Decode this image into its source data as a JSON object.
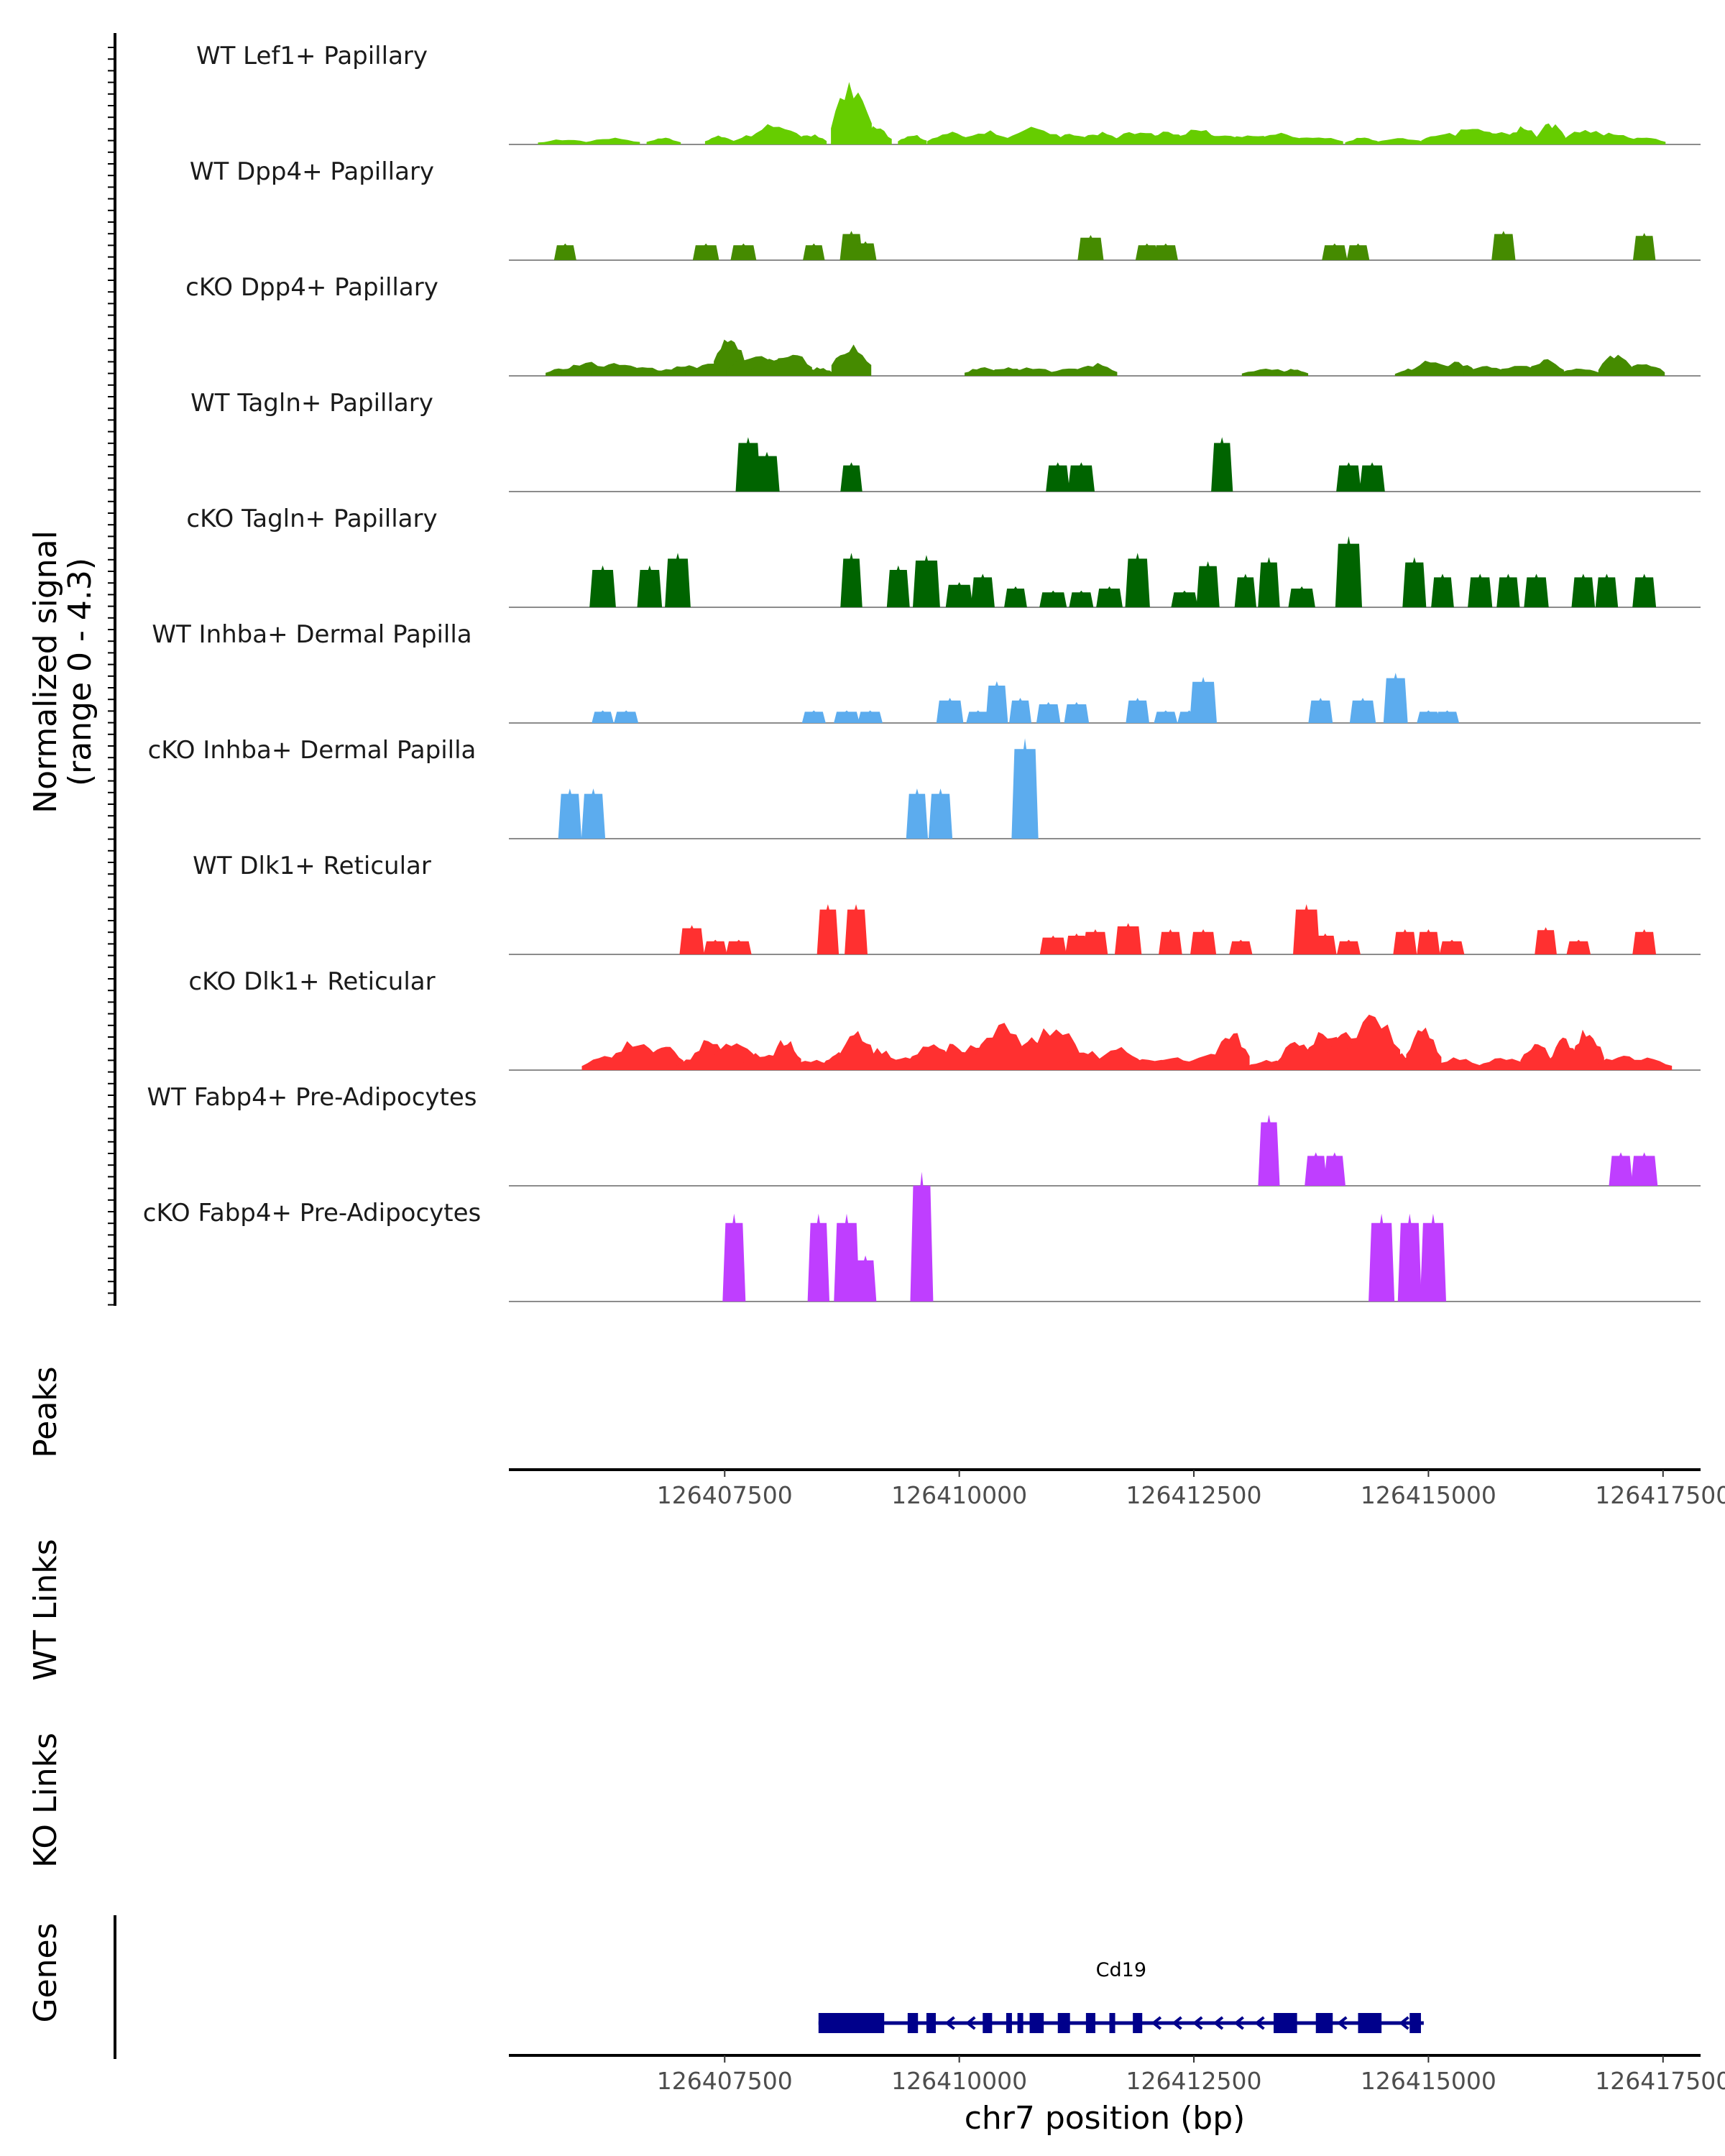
{
  "chart_data": {
    "type": "area",
    "chromosome": "chr7",
    "xlim": [
      126405200,
      126417900
    ],
    "x_ticks": [
      126407500,
      126410000,
      126412500,
      126415000,
      126417500
    ],
    "x_tick_labels": [
      "126407500",
      "126410000",
      "126412500",
      "126415000",
      "126417500"
    ],
    "xlabel": "chr7 position (bp)",
    "ylabel": "Normalized signal",
    "ylabel_range": "(range 0 - 4.3)",
    "ylim": [
      0,
      4.3
    ],
    "series": [
      {
        "name": "WT Lef1+ Papillary",
        "color": "#66CD00",
        "mode": "dense",
        "peaks": [
          [
            126405800,
            0.15
          ],
          [
            126406300,
            0.2
          ],
          [
            126406850,
            0.2
          ],
          [
            126407450,
            0.25
          ],
          [
            126407800,
            0.3
          ],
          [
            126408050,
            0.6
          ],
          [
            126408400,
            0.3
          ],
          [
            126408850,
            1.7
          ],
          [
            126409100,
            0.5
          ],
          [
            126409500,
            0.3
          ],
          [
            126409900,
            0.35
          ],
          [
            126410300,
            0.4
          ],
          [
            126410800,
            0.5
          ],
          [
            126411200,
            0.3
          ],
          [
            126411500,
            0.35
          ],
          [
            126411900,
            0.4
          ],
          [
            126412200,
            0.35
          ],
          [
            126412550,
            0.45
          ],
          [
            126412800,
            0.3
          ],
          [
            126413100,
            0.3
          ],
          [
            126413400,
            0.35
          ],
          [
            126413800,
            0.25
          ],
          [
            126414300,
            0.2
          ],
          [
            126414700,
            0.2
          ],
          [
            126415150,
            0.35
          ],
          [
            126415500,
            0.55
          ],
          [
            126415750,
            0.4
          ],
          [
            126416000,
            0.5
          ],
          [
            126416300,
            0.6
          ],
          [
            126416700,
            0.45
          ],
          [
            126417000,
            0.35
          ],
          [
            126417300,
            0.25
          ]
        ]
      },
      {
        "name": "WT Dpp4+ Papillary",
        "color": "#458B00",
        "mode": "blocky",
        "peaks": [
          [
            126405800,
            0.4
          ],
          [
            126407300,
            0.4
          ],
          [
            126407700,
            0.4
          ],
          [
            126408450,
            0.4
          ],
          [
            126408850,
            0.7
          ],
          [
            126409000,
            0.45
          ],
          [
            126411400,
            0.6
          ],
          [
            126412000,
            0.4
          ],
          [
            126412200,
            0.4
          ],
          [
            126414000,
            0.4
          ],
          [
            126414250,
            0.4
          ],
          [
            126415800,
            0.7
          ],
          [
            126417300,
            0.65
          ]
        ]
      },
      {
        "name": "cKO Dpp4+ Papillary",
        "color": "#458B00",
        "mode": "dense",
        "peaks": [
          [
            126405800,
            0.25
          ],
          [
            126406050,
            0.4
          ],
          [
            126406350,
            0.4
          ],
          [
            126406650,
            0.25
          ],
          [
            126406900,
            0.2
          ],
          [
            126407100,
            0.35
          ],
          [
            126407350,
            0.35
          ],
          [
            126407550,
            1.3
          ],
          [
            126407800,
            0.6
          ],
          [
            126408000,
            0.5
          ],
          [
            126408200,
            0.7
          ],
          [
            126408500,
            0.25
          ],
          [
            126408850,
            0.85
          ],
          [
            126410250,
            0.25
          ],
          [
            126410500,
            0.25
          ],
          [
            126410750,
            0.25
          ],
          [
            126411200,
            0.2
          ],
          [
            126411450,
            0.35
          ],
          [
            126413300,
            0.2
          ],
          [
            126413550,
            0.2
          ],
          [
            126414800,
            0.2
          ],
          [
            126415050,
            0.45
          ],
          [
            126415300,
            0.4
          ],
          [
            126415600,
            0.3
          ],
          [
            126415950,
            0.3
          ],
          [
            126416250,
            0.5
          ],
          [
            126416600,
            0.25
          ],
          [
            126417000,
            0.6
          ],
          [
            126417300,
            0.35
          ]
        ]
      },
      {
        "name": "WT Tagln+ Papillary",
        "color": "#006400",
        "mode": "blocky",
        "peaks": [
          [
            126407750,
            1.3
          ],
          [
            126407950,
            0.95
          ],
          [
            126408850,
            0.7
          ],
          [
            126411050,
            0.7
          ],
          [
            126411300,
            0.7
          ],
          [
            126412800,
            1.3
          ],
          [
            126414150,
            0.7
          ],
          [
            126414400,
            0.7
          ]
        ]
      },
      {
        "name": "cKO Tagln+ Papillary",
        "color": "#006400",
        "mode": "blocky",
        "peaks": [
          [
            126406200,
            1.0
          ],
          [
            126406700,
            1.0
          ],
          [
            126407000,
            1.3
          ],
          [
            126408850,
            1.3
          ],
          [
            126409350,
            1.0
          ],
          [
            126409650,
            1.25
          ],
          [
            126410000,
            0.6
          ],
          [
            126410250,
            0.8
          ],
          [
            126410600,
            0.5
          ],
          [
            126411000,
            0.4
          ],
          [
            126411300,
            0.4
          ],
          [
            126411600,
            0.5
          ],
          [
            126411900,
            1.3
          ],
          [
            126412400,
            0.4
          ],
          [
            126412650,
            1.1
          ],
          [
            126413050,
            0.8
          ],
          [
            126413300,
            1.2
          ],
          [
            126413650,
            0.5
          ],
          [
            126414150,
            1.7
          ],
          [
            126414850,
            1.2
          ],
          [
            126415150,
            0.8
          ],
          [
            126415550,
            0.8
          ],
          [
            126415850,
            0.8
          ],
          [
            126416150,
            0.8
          ],
          [
            126416650,
            0.8
          ],
          [
            126416900,
            0.8
          ],
          [
            126417300,
            0.8
          ]
        ]
      },
      {
        "name": "WT Inhba+ Dermal Papilla",
        "color": "#5CACEE",
        "mode": "blocky",
        "peaks": [
          [
            126406200,
            0.3
          ],
          [
            126406450,
            0.3
          ],
          [
            126408450,
            0.3
          ],
          [
            126408800,
            0.3
          ],
          [
            126409050,
            0.3
          ],
          [
            126409900,
            0.6
          ],
          [
            126410200,
            0.3
          ],
          [
            126410400,
            1.0
          ],
          [
            126410650,
            0.6
          ],
          [
            126410950,
            0.5
          ],
          [
            126411250,
            0.5
          ],
          [
            126411900,
            0.6
          ],
          [
            126412200,
            0.3
          ],
          [
            126412450,
            0.3
          ],
          [
            126412600,
            1.1
          ],
          [
            126413850,
            0.6
          ],
          [
            126414300,
            0.6
          ],
          [
            126414650,
            1.2
          ],
          [
            126415000,
            0.3
          ],
          [
            126415200,
            0.3
          ]
        ]
      },
      {
        "name": "cKO Inhba+ Dermal Papilla",
        "color": "#5CACEE",
        "mode": "blocky",
        "peaks": [
          [
            126405850,
            1.2
          ],
          [
            126406100,
            1.2
          ],
          [
            126409550,
            1.2
          ],
          [
            126409800,
            1.2
          ],
          [
            126410700,
            2.4
          ]
        ]
      },
      {
        "name": "WT Dlk1+ Reticular",
        "color": "#FF3030",
        "mode": "blocky",
        "peaks": [
          [
            126407150,
            0.7
          ],
          [
            126407400,
            0.35
          ],
          [
            126407650,
            0.35
          ],
          [
            126408600,
            1.2
          ],
          [
            126408900,
            1.2
          ],
          [
            126411000,
            0.45
          ],
          [
            126411250,
            0.5
          ],
          [
            126411450,
            0.6
          ],
          [
            126411800,
            0.75
          ],
          [
            126412250,
            0.6
          ],
          [
            126412600,
            0.6
          ],
          [
            126413000,
            0.35
          ],
          [
            126413700,
            1.2
          ],
          [
            126413900,
            0.5
          ],
          [
            126414150,
            0.35
          ],
          [
            126414750,
            0.6
          ],
          [
            126415000,
            0.6
          ],
          [
            126415250,
            0.35
          ],
          [
            126416250,
            0.65
          ],
          [
            126416600,
            0.35
          ],
          [
            126417300,
            0.6
          ]
        ]
      },
      {
        "name": "cKO Dlk1+ Reticular",
        "color": "#FF3030",
        "mode": "dense",
        "peaks": [
          [
            126406250,
            0.4
          ],
          [
            126406550,
            0.9
          ],
          [
            126406850,
            0.8
          ],
          [
            126407150,
            0.35
          ],
          [
            126407350,
            0.9
          ],
          [
            126407600,
            0.8
          ],
          [
            126407900,
            0.5
          ],
          [
            126408150,
            0.9
          ],
          [
            126408450,
            0.3
          ],
          [
            126408700,
            0.5
          ],
          [
            126408900,
            1.2
          ],
          [
            126409150,
            0.6
          ],
          [
            126409400,
            0.4
          ],
          [
            126409700,
            0.7
          ],
          [
            126409950,
            0.8
          ],
          [
            126410150,
            0.7
          ],
          [
            126410450,
            1.3
          ],
          [
            126410750,
            0.9
          ],
          [
            126411000,
            1.3
          ],
          [
            126411350,
            0.6
          ],
          [
            126411700,
            0.7
          ],
          [
            126412050,
            0.35
          ],
          [
            126412300,
            0.35
          ],
          [
            126412650,
            0.45
          ],
          [
            126412900,
            1.1
          ],
          [
            126413300,
            0.3
          ],
          [
            126413600,
            0.8
          ],
          [
            126413900,
            1.2
          ],
          [
            126414150,
            1.1
          ],
          [
            126414400,
            1.6
          ],
          [
            126414700,
            0.5
          ],
          [
            126414950,
            1.2
          ],
          [
            126415300,
            0.35
          ],
          [
            126415800,
            0.35
          ],
          [
            126416150,
            0.8
          ],
          [
            126416450,
            0.9
          ],
          [
            126416700,
            1.2
          ],
          [
            126417050,
            0.4
          ],
          [
            126417300,
            0.35
          ]
        ]
      },
      {
        "name": "WT Fabp4+ Pre-Adipocytes",
        "color": "#BF3EFF",
        "mode": "blocky",
        "peaks": [
          [
            126413300,
            1.7
          ],
          [
            126413800,
            0.8
          ],
          [
            126414000,
            0.8
          ],
          [
            126417050,
            0.8
          ],
          [
            126417300,
            0.8
          ]
        ]
      },
      {
        "name": "cKO Fabp4+ Pre-Adipocytes",
        "color": "#BF3EFF",
        "mode": "blocky",
        "peaks": [
          [
            126407600,
            2.1
          ],
          [
            126408500,
            2.1
          ],
          [
            126408800,
            2.1
          ],
          [
            126409000,
            1.1
          ],
          [
            126409600,
            3.1
          ],
          [
            126414500,
            2.1
          ],
          [
            126414800,
            2.1
          ],
          [
            126415050,
            2.1
          ]
        ]
      }
    ],
    "gene": {
      "name": "Cd19",
      "start": 126408500,
      "end": 126414950,
      "strand": "-",
      "color": "#00008B",
      "exons": [
        [
          126408500,
          126409200
        ],
        [
          126409450,
          126409560
        ],
        [
          126409650,
          126409750
        ],
        [
          126410250,
          126410350
        ],
        [
          126410500,
          126410560
        ],
        [
          126410620,
          126410680
        ],
        [
          126410750,
          126410900
        ],
        [
          126411050,
          126411180
        ],
        [
          126411350,
          126411450
        ],
        [
          126411600,
          126411650
        ],
        [
          126411850,
          126411950
        ],
        [
          126413350,
          126413600
        ],
        [
          126413800,
          126413980
        ],
        [
          126414250,
          126414500
        ],
        [
          126414800,
          126414920
        ]
      ]
    },
    "side_tracks": [
      "Peaks",
      "WT Links",
      "KO Links",
      "Genes"
    ]
  }
}
